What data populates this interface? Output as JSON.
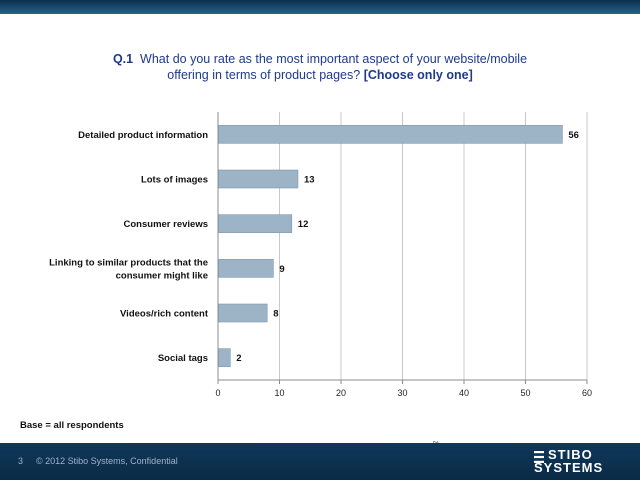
{
  "slide": {
    "question_number": "Q.1",
    "question_line1": "What do you rate as the most important aspect of your website/mobile",
    "question_line2": "offering in terms of product pages?",
    "question_instruction": "[Choose only one]",
    "base_note": "Base = all respondents",
    "small_mark": "%",
    "page_number": "3",
    "copyright": "© 2012 Stibo Systems, Confidential",
    "logo_line1": "STIBO",
    "logo_line2": "SYSTEMS"
  },
  "colors": {
    "bar": "#9db3c6",
    "bar_stroke": "#7f98ae",
    "grid": "#c8c8c8",
    "axis": "#8c8c8c",
    "title": "#1f3a8a",
    "footer": "#0a2a46"
  },
  "chart_data": {
    "type": "bar",
    "orientation": "horizontal",
    "categories": [
      "Detailed product information",
      "Lots of images",
      "Consumer reviews",
      "Linking to similar products that the consumer might like",
      "Videos/rich content",
      "Social tags"
    ],
    "category_lines": [
      [
        "Detailed product information"
      ],
      [
        "Lots of images"
      ],
      [
        "Consumer reviews"
      ],
      [
        "Linking to similar products that the",
        "consumer might like"
      ],
      [
        "Videos/rich content"
      ],
      [
        "Social tags"
      ]
    ],
    "values": [
      56,
      13,
      12,
      9,
      8,
      2
    ],
    "xlim": [
      0,
      60
    ],
    "xticks": [
      0,
      10,
      20,
      30,
      40,
      50,
      60
    ],
    "grid": true,
    "title": "Q.1 What do you rate as the most important aspect of your website/mobile offering in terms of product pages? [Choose only one]",
    "xlabel": "",
    "ylabel": ""
  }
}
